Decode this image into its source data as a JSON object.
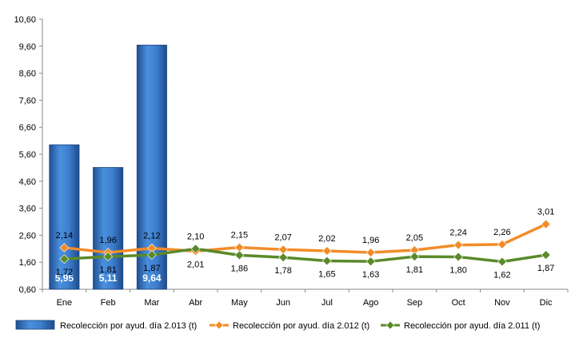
{
  "chart_data": {
    "type": "bar",
    "categories": [
      "Ene",
      "Feb",
      "Mar",
      "Abr",
      "May",
      "Jun",
      "Jul",
      "Ago",
      "Sep",
      "Oct",
      "Nov",
      "Dic"
    ],
    "ylim": [
      0.6,
      10.6
    ],
    "yticks": [
      "0,60",
      "1,60",
      "2,60",
      "3,60",
      "4,60",
      "5,60",
      "6,60",
      "7,60",
      "8,60",
      "9,60",
      "10,60"
    ],
    "grid": false,
    "legend_position": "bottom",
    "series": [
      {
        "name": "Recolección por ayud. día 2.013 (t)",
        "type": "bar",
        "color": "#3a78c6",
        "values": [
          5.95,
          5.11,
          9.64,
          null,
          null,
          null,
          null,
          null,
          null,
          null,
          null,
          null
        ],
        "labels": [
          "5,95",
          "5,11",
          "9,64",
          "",
          "",
          "",
          "",
          "",
          "",
          "",
          "",
          ""
        ]
      },
      {
        "name": "Recolección por ayud. día 2.012 (t)",
        "type": "line",
        "color": "#f28c28",
        "values": [
          2.14,
          1.96,
          2.12,
          2.01,
          2.15,
          2.07,
          2.02,
          1.96,
          2.05,
          2.24,
          2.26,
          3.01
        ],
        "labels": [
          "2,14",
          "1,96",
          "2,12",
          "2,01",
          "2,15",
          "2,07",
          "2,02",
          "1,96",
          "2,05",
          "2,24",
          "2,26",
          "3,01"
        ]
      },
      {
        "name": "Recolección por ayud. día 2.011 (t)",
        "type": "line",
        "color": "#5a8a2a",
        "values": [
          1.72,
          1.81,
          1.87,
          2.1,
          1.86,
          1.78,
          1.65,
          1.63,
          1.81,
          1.8,
          1.62,
          1.87
        ],
        "labels": [
          "1,72",
          "1,81",
          "1,87",
          "2,10",
          "1,86",
          "1,78",
          "1,65",
          "1,63",
          "1,81",
          "1,80",
          "1,62",
          "1,87"
        ]
      }
    ]
  }
}
